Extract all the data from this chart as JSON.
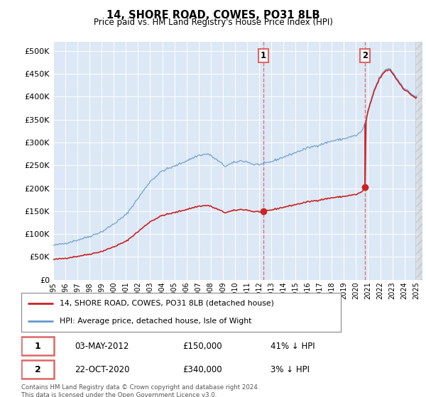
{
  "title": "14, SHORE ROAD, COWES, PO31 8LB",
  "subtitle": "Price paid vs. HM Land Registry's House Price Index (HPI)",
  "background_color": "#ffffff",
  "plot_bg_color": "#dce8f5",
  "legend_line1": "14, SHORE ROAD, COWES, PO31 8LB (detached house)",
  "legend_line2": "HPI: Average price, detached house, Isle of Wight",
  "sale1_date": "03-MAY-2012",
  "sale1_price": 150000,
  "sale1_label": "£150,000",
  "sale1_hpi": "41% ↓ HPI",
  "sale2_date": "22-OCT-2020",
  "sale2_price": 340000,
  "sale2_label": "£340,000",
  "sale2_hpi": "3% ↓ HPI",
  "footer": "Contains HM Land Registry data © Crown copyright and database right 2024.\nThis data is licensed under the Open Government Licence v3.0.",
  "ylim": [
    0,
    520000
  ],
  "yticks": [
    0,
    50000,
    100000,
    150000,
    200000,
    250000,
    300000,
    350000,
    400000,
    450000,
    500000
  ],
  "year_start": 1995,
  "year_end": 2025,
  "hpi_color": "#6699cc",
  "prop_color": "#cc2222",
  "vline_color": "#dd6666",
  "marker_color": "#cc2222"
}
